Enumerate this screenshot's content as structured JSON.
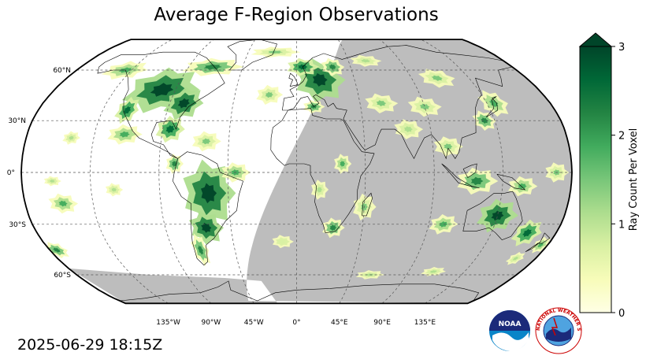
{
  "title": "Average F-Region Observations",
  "timestamp": "2025-06-29 18:15Z",
  "map": {
    "projection": "robinson",
    "lat_labels": [
      {
        "lat": 60,
        "text": "60°N"
      },
      {
        "lat": 30,
        "text": "30°N"
      },
      {
        "lat": 0,
        "text": "0°"
      },
      {
        "lat": -30,
        "text": "30°S"
      },
      {
        "lat": -60,
        "text": "60°S"
      }
    ],
    "lon_labels": [
      {
        "lon": -135,
        "text": "135°W"
      },
      {
        "lon": -90,
        "text": "90°W"
      },
      {
        "lon": -45,
        "text": "45°W"
      },
      {
        "lon": 0,
        "text": "0°"
      },
      {
        "lon": 45,
        "text": "45°E"
      },
      {
        "lon": 90,
        "text": "90°E"
      },
      {
        "lon": 135,
        "text": "135°E"
      }
    ],
    "night_color": "#bdbdbd",
    "gridline_style": "dashed"
  },
  "colorbar": {
    "label": "Ray Count Per Voxel",
    "ticks": [
      {
        "value": 0,
        "text": "0"
      },
      {
        "value": 1,
        "text": "1"
      },
      {
        "value": 2,
        "text": "2"
      },
      {
        "value": 3,
        "text": "3"
      }
    ],
    "min": 0,
    "max": 3,
    "extend": "max",
    "colors": [
      "#ffffe5",
      "#f7fcb9",
      "#d9f0a3",
      "#addd8e",
      "#78c679",
      "#41ab5d",
      "#238443",
      "#006837",
      "#004529"
    ]
  },
  "logos": {
    "noaa_text": "NOAA",
    "nws_text": "NATIONAL WEATHER SERVICE"
  }
}
